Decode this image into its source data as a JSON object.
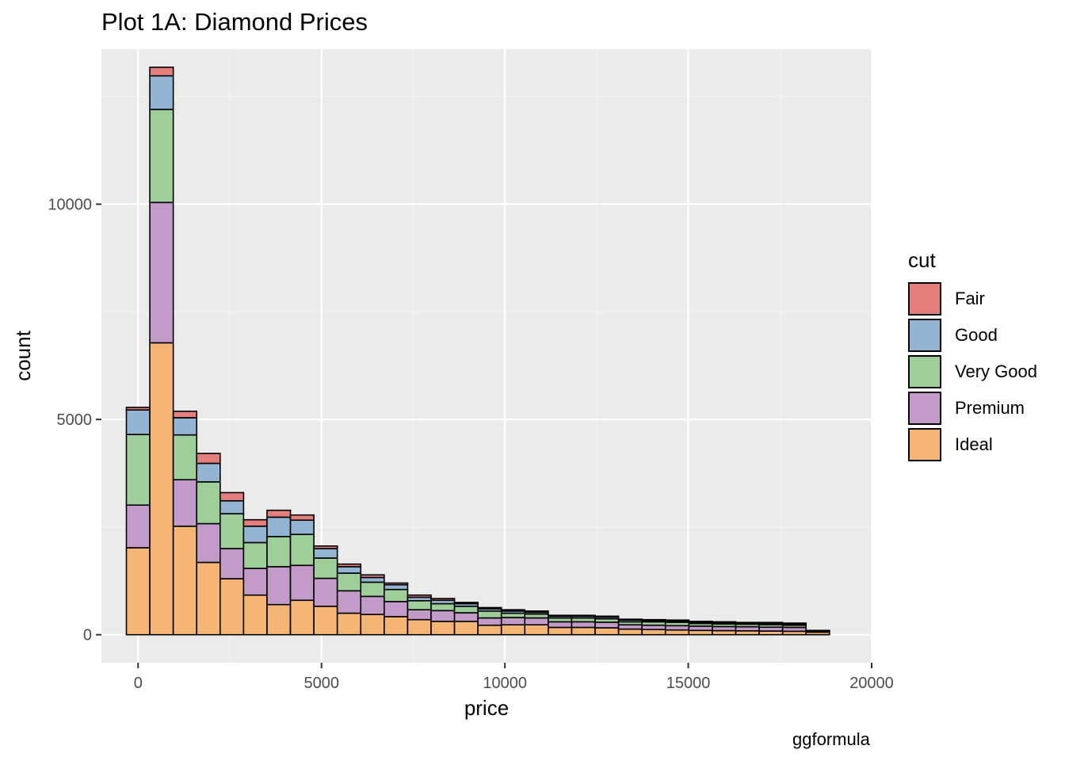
{
  "title": "Plot 1A: Diamond Prices",
  "caption": "ggformula",
  "chart_data": {
    "type": "bar",
    "subtype": "stacked histogram",
    "title": "Plot 1A: Diamond Prices",
    "xlabel": "price",
    "ylabel": "count",
    "xlim": [
      -1000,
      20000
    ],
    "ylim": [
      -650,
      13600
    ],
    "x_ticks": [
      0,
      5000,
      10000,
      15000,
      20000
    ],
    "y_ticks": [
      0,
      5000,
      10000
    ],
    "x_tick_labels": [
      "0",
      "5000",
      "10000",
      "15000",
      "20000"
    ],
    "y_tick_labels": [
      "0",
      "5000",
      "10000"
    ],
    "grid": true,
    "legend_position": "right",
    "legend_title": "cut",
    "bin_width": 639,
    "bin_centers": [
      0,
      639,
      1278,
      1917,
      2556,
      3195,
      3834,
      4473,
      5112,
      5751,
      6390,
      7029,
      7668,
      8307,
      8946,
      9585,
      10224,
      10863,
      11502,
      12141,
      12780,
      13419,
      14058,
      14697,
      15336,
      15975,
      16614,
      17253,
      17892,
      18531
    ],
    "series": [
      {
        "name": "Ideal",
        "color": "#F5B574",
        "values": [
          2020,
          6780,
          2520,
          1680,
          1300,
          920,
          700,
          800,
          660,
          500,
          470,
          420,
          350,
          310,
          310,
          220,
          230,
          230,
          170,
          170,
          160,
          130,
          120,
          110,
          100,
          95,
          90,
          85,
          80,
          60
        ]
      },
      {
        "name": "Premium",
        "color": "#C39BC9",
        "values": [
          990,
          3260,
          1080,
          900,
          700,
          620,
          880,
          810,
          650,
          520,
          420,
          350,
          230,
          250,
          200,
          170,
          170,
          160,
          130,
          130,
          130,
          100,
          100,
          100,
          100,
          95,
          95,
          90,
          90,
          20
        ]
      },
      {
        "name": "Very Good",
        "color": "#9ECE9A",
        "values": [
          1640,
          2160,
          1040,
          970,
          810,
          600,
          700,
          720,
          470,
          410,
          330,
          280,
          210,
          160,
          150,
          160,
          100,
          90,
          90,
          90,
          80,
          70,
          80,
          80,
          60,
          60,
          60,
          60,
          50,
          10
        ]
      },
      {
        "name": "Good",
        "color": "#93B4D2",
        "values": [
          570,
          780,
          400,
          430,
          300,
          380,
          450,
          330,
          220,
          150,
          110,
          110,
          80,
          80,
          60,
          50,
          50,
          40,
          40,
          40,
          40,
          40,
          30,
          30,
          30,
          30,
          20,
          30,
          30,
          5
        ]
      },
      {
        "name": "Fair",
        "color": "#E47F7E",
        "values": [
          60,
          200,
          150,
          230,
          190,
          150,
          160,
          120,
          60,
          60,
          60,
          40,
          50,
          40,
          30,
          30,
          30,
          30,
          20,
          20,
          20,
          20,
          20,
          20,
          20,
          20,
          20,
          20,
          20,
          5
        ]
      }
    ]
  }
}
